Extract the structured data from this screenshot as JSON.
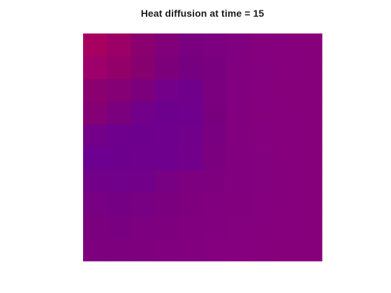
{
  "chart_data": {
    "type": "heatmap",
    "title": "Heat diffusion at time = 15",
    "xlabel": "",
    "ylabel": "",
    "grid": false,
    "colorbar": false,
    "rows": 10,
    "cols": 10,
    "colors": [
      [
        "#a80060",
        "#9c0066",
        "#8a006f",
        "#810079",
        "#79007f",
        "#7c007f",
        "#81007f",
        "#85007c",
        "#86007d",
        "#86007b"
      ],
      [
        "#9d006a",
        "#93006a",
        "#86006f",
        "#7d007b",
        "#76007f",
        "#79007f",
        "#80007f",
        "#83007e",
        "#86007d",
        "#86007b"
      ],
      [
        "#8b0070",
        "#840074",
        "#7c007b",
        "#74008a",
        "#70008b",
        "#7a007f",
        "#80007f",
        "#84007e",
        "#87007b",
        "#86007b"
      ],
      [
        "#840074",
        "#7a007e",
        "#720088",
        "#6e008e",
        "#6e008d",
        "#78007f",
        "#81007f",
        "#85007d",
        "#86007d",
        "#86007b"
      ],
      [
        "#74008a",
        "#6f008d",
        "#6e008e",
        "#6e008d",
        "#71008b",
        "#790080",
        "#82007f",
        "#85007e",
        "#86007d",
        "#86007b"
      ],
      [
        "#6d0091",
        "#6e008e",
        "#6e008d",
        "#6f008d",
        "#73008a",
        "#7a007f",
        "#81007f",
        "#83007e",
        "#86007d",
        "#86007b"
      ],
      [
        "#730089",
        "#71008b",
        "#730089",
        "#780082",
        "#7c007f",
        "#7e007f",
        "#81007f",
        "#83007e",
        "#85007d",
        "#86007b"
      ],
      [
        "#770083",
        "#760084",
        "#780082",
        "#7a007f",
        "#7e007f",
        "#80007f",
        "#82007e",
        "#84007e",
        "#85007d",
        "#86007b"
      ],
      [
        "#7a007f",
        "#790080",
        "#7c007f",
        "#7e007f",
        "#80007f",
        "#82007f",
        "#83007e",
        "#85007d",
        "#86007d",
        "#86007b"
      ],
      [
        "#7d007f",
        "#7d007f",
        "#7e007f",
        "#80007f",
        "#82007f",
        "#84007e",
        "#85007e",
        "#86007d",
        "#87007b",
        "#87007b"
      ]
    ]
  }
}
